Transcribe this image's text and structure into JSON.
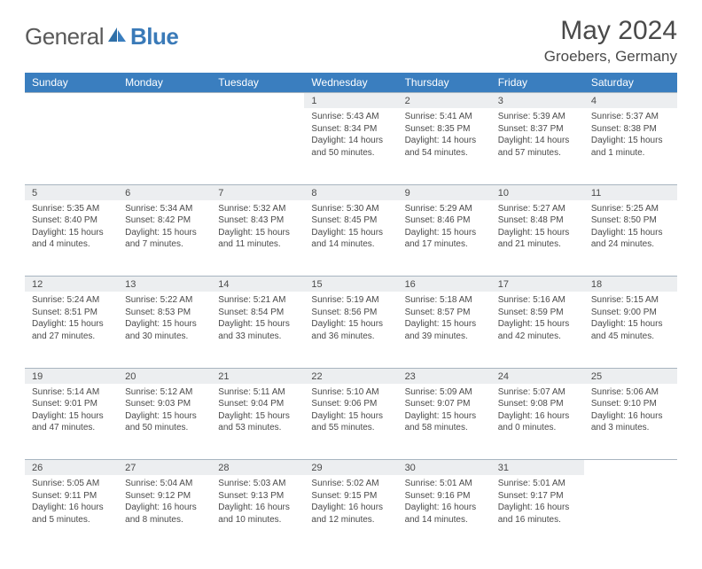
{
  "logo": {
    "text1": "General",
    "text2": "Blue"
  },
  "title": "May 2024",
  "location": "Groebers, Germany",
  "colors": {
    "header_bg": "#3a7ebf",
    "header_text": "#ffffff",
    "daynum_bg": "#eceef0",
    "text": "#4a4a4a",
    "rule": "#a8b5c0",
    "logo_gray": "#5a5a5a",
    "logo_blue": "#3a7ab8"
  },
  "fonts": {
    "title_size": 30,
    "location_size": 17,
    "weekday_size": 12,
    "daynum_size": 11,
    "body_size": 10
  },
  "weekdays": [
    "Sunday",
    "Monday",
    "Tuesday",
    "Wednesday",
    "Thursday",
    "Friday",
    "Saturday"
  ],
  "weeks": [
    [
      null,
      null,
      null,
      {
        "n": "1",
        "sr": "5:43 AM",
        "ss": "8:34 PM",
        "dl": "14 hours and 50 minutes."
      },
      {
        "n": "2",
        "sr": "5:41 AM",
        "ss": "8:35 PM",
        "dl": "14 hours and 54 minutes."
      },
      {
        "n": "3",
        "sr": "5:39 AM",
        "ss": "8:37 PM",
        "dl": "14 hours and 57 minutes."
      },
      {
        "n": "4",
        "sr": "5:37 AM",
        "ss": "8:38 PM",
        "dl": "15 hours and 1 minute."
      }
    ],
    [
      {
        "n": "5",
        "sr": "5:35 AM",
        "ss": "8:40 PM",
        "dl": "15 hours and 4 minutes."
      },
      {
        "n": "6",
        "sr": "5:34 AM",
        "ss": "8:42 PM",
        "dl": "15 hours and 7 minutes."
      },
      {
        "n": "7",
        "sr": "5:32 AM",
        "ss": "8:43 PM",
        "dl": "15 hours and 11 minutes."
      },
      {
        "n": "8",
        "sr": "5:30 AM",
        "ss": "8:45 PM",
        "dl": "15 hours and 14 minutes."
      },
      {
        "n": "9",
        "sr": "5:29 AM",
        "ss": "8:46 PM",
        "dl": "15 hours and 17 minutes."
      },
      {
        "n": "10",
        "sr": "5:27 AM",
        "ss": "8:48 PM",
        "dl": "15 hours and 21 minutes."
      },
      {
        "n": "11",
        "sr": "5:25 AM",
        "ss": "8:50 PM",
        "dl": "15 hours and 24 minutes."
      }
    ],
    [
      {
        "n": "12",
        "sr": "5:24 AM",
        "ss": "8:51 PM",
        "dl": "15 hours and 27 minutes."
      },
      {
        "n": "13",
        "sr": "5:22 AM",
        "ss": "8:53 PM",
        "dl": "15 hours and 30 minutes."
      },
      {
        "n": "14",
        "sr": "5:21 AM",
        "ss": "8:54 PM",
        "dl": "15 hours and 33 minutes."
      },
      {
        "n": "15",
        "sr": "5:19 AM",
        "ss": "8:56 PM",
        "dl": "15 hours and 36 minutes."
      },
      {
        "n": "16",
        "sr": "5:18 AM",
        "ss": "8:57 PM",
        "dl": "15 hours and 39 minutes."
      },
      {
        "n": "17",
        "sr": "5:16 AM",
        "ss": "8:59 PM",
        "dl": "15 hours and 42 minutes."
      },
      {
        "n": "18",
        "sr": "5:15 AM",
        "ss": "9:00 PM",
        "dl": "15 hours and 45 minutes."
      }
    ],
    [
      {
        "n": "19",
        "sr": "5:14 AM",
        "ss": "9:01 PM",
        "dl": "15 hours and 47 minutes."
      },
      {
        "n": "20",
        "sr": "5:12 AM",
        "ss": "9:03 PM",
        "dl": "15 hours and 50 minutes."
      },
      {
        "n": "21",
        "sr": "5:11 AM",
        "ss": "9:04 PM",
        "dl": "15 hours and 53 minutes."
      },
      {
        "n": "22",
        "sr": "5:10 AM",
        "ss": "9:06 PM",
        "dl": "15 hours and 55 minutes."
      },
      {
        "n": "23",
        "sr": "5:09 AM",
        "ss": "9:07 PM",
        "dl": "15 hours and 58 minutes."
      },
      {
        "n": "24",
        "sr": "5:07 AM",
        "ss": "9:08 PM",
        "dl": "16 hours and 0 minutes."
      },
      {
        "n": "25",
        "sr": "5:06 AM",
        "ss": "9:10 PM",
        "dl": "16 hours and 3 minutes."
      }
    ],
    [
      {
        "n": "26",
        "sr": "5:05 AM",
        "ss": "9:11 PM",
        "dl": "16 hours and 5 minutes."
      },
      {
        "n": "27",
        "sr": "5:04 AM",
        "ss": "9:12 PM",
        "dl": "16 hours and 8 minutes."
      },
      {
        "n": "28",
        "sr": "5:03 AM",
        "ss": "9:13 PM",
        "dl": "16 hours and 10 minutes."
      },
      {
        "n": "29",
        "sr": "5:02 AM",
        "ss": "9:15 PM",
        "dl": "16 hours and 12 minutes."
      },
      {
        "n": "30",
        "sr": "5:01 AM",
        "ss": "9:16 PM",
        "dl": "16 hours and 14 minutes."
      },
      {
        "n": "31",
        "sr": "5:01 AM",
        "ss": "9:17 PM",
        "dl": "16 hours and 16 minutes."
      },
      null
    ]
  ],
  "labels": {
    "sunrise": "Sunrise:",
    "sunset": "Sunset:",
    "daylight": "Daylight:"
  }
}
